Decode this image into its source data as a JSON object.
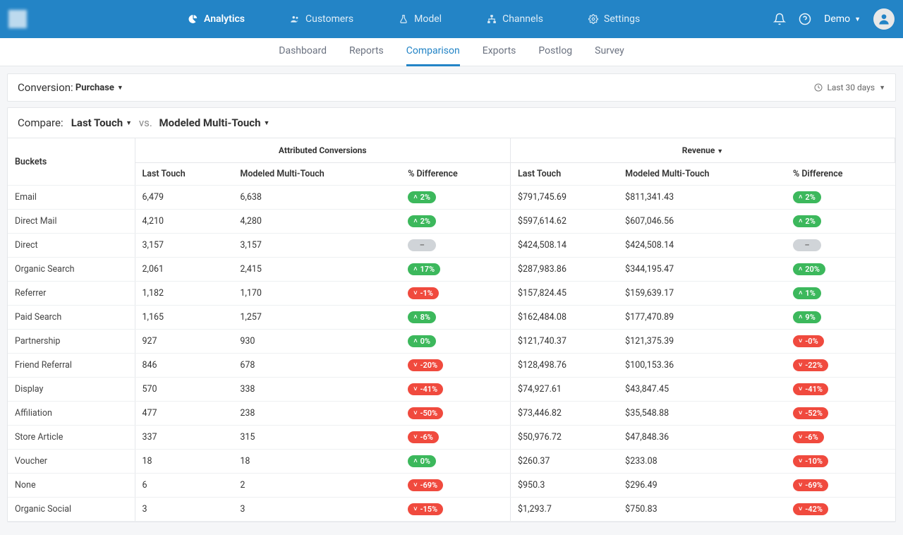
{
  "nav": {
    "items": [
      {
        "label": "Analytics",
        "active": true,
        "icon": "pie"
      },
      {
        "label": "Customers",
        "active": false,
        "icon": "users"
      },
      {
        "label": "Model",
        "active": false,
        "icon": "flask"
      },
      {
        "label": "Channels",
        "active": false,
        "icon": "sitemap"
      },
      {
        "label": "Settings",
        "active": false,
        "icon": "cogs"
      }
    ],
    "user": "Demo"
  },
  "subnav": {
    "items": [
      "Dashboard",
      "Reports",
      "Comparison",
      "Exports",
      "Postlog",
      "Survey"
    ],
    "active": "Comparison"
  },
  "filters": {
    "conversion_label": "Conversion:",
    "conversion_value": "Purchase",
    "date_range": "Last 30 days",
    "compare_label": "Compare:",
    "model_a": "Last Touch",
    "vs": "vs.",
    "model_b": "Modeled Multi-Touch"
  },
  "table": {
    "buckets_header": "Buckets",
    "group1_header": "Attributed Conversions",
    "group2_header": "Revenue",
    "sub_headers": [
      "Last Touch",
      "Modeled Multi-Touch",
      "% Difference",
      "Last Touch",
      "Modeled Multi-Touch",
      "% Difference"
    ],
    "rows": [
      {
        "bucket": "Email",
        "lt": "6,479",
        "mmt": "6,638",
        "diff1": {
          "val": "2%",
          "dir": "up"
        },
        "rlt": "$791,745.69",
        "rmmt": "$811,341.43",
        "diff2": {
          "val": "2%",
          "dir": "up"
        }
      },
      {
        "bucket": "Direct Mail",
        "lt": "4,210",
        "mmt": "4,280",
        "diff1": {
          "val": "2%",
          "dir": "up"
        },
        "rlt": "$597,614.62",
        "rmmt": "$607,046.56",
        "diff2": {
          "val": "2%",
          "dir": "up"
        }
      },
      {
        "bucket": "Direct",
        "lt": "3,157",
        "mmt": "3,157",
        "diff1": {
          "val": "–",
          "dir": "neutral"
        },
        "rlt": "$424,508.14",
        "rmmt": "$424,508.14",
        "diff2": {
          "val": "–",
          "dir": "neutral"
        }
      },
      {
        "bucket": "Organic Search",
        "lt": "2,061",
        "mmt": "2,415",
        "diff1": {
          "val": "17%",
          "dir": "up"
        },
        "rlt": "$287,983.86",
        "rmmt": "$344,195.47",
        "diff2": {
          "val": "20%",
          "dir": "up"
        }
      },
      {
        "bucket": "Referrer",
        "lt": "1,182",
        "mmt": "1,170",
        "diff1": {
          "val": "-1%",
          "dir": "down"
        },
        "rlt": "$157,824.45",
        "rmmt": "$159,639.17",
        "diff2": {
          "val": "1%",
          "dir": "up"
        }
      },
      {
        "bucket": "Paid Search",
        "lt": "1,165",
        "mmt": "1,257",
        "diff1": {
          "val": "8%",
          "dir": "up"
        },
        "rlt": "$162,484.08",
        "rmmt": "$177,470.89",
        "diff2": {
          "val": "9%",
          "dir": "up"
        }
      },
      {
        "bucket": "Partnership",
        "lt": "927",
        "mmt": "930",
        "diff1": {
          "val": "0%",
          "dir": "up"
        },
        "rlt": "$121,740.37",
        "rmmt": "$121,375.39",
        "diff2": {
          "val": "-0%",
          "dir": "down"
        }
      },
      {
        "bucket": "Friend Referral",
        "lt": "846",
        "mmt": "678",
        "diff1": {
          "val": "-20%",
          "dir": "down"
        },
        "rlt": "$128,498.76",
        "rmmt": "$100,153.36",
        "diff2": {
          "val": "-22%",
          "dir": "down"
        }
      },
      {
        "bucket": "Display",
        "lt": "570",
        "mmt": "338",
        "diff1": {
          "val": "-41%",
          "dir": "down"
        },
        "rlt": "$74,927.61",
        "rmmt": "$43,847.45",
        "diff2": {
          "val": "-41%",
          "dir": "down"
        }
      },
      {
        "bucket": "Affiliation",
        "lt": "477",
        "mmt": "238",
        "diff1": {
          "val": "-50%",
          "dir": "down"
        },
        "rlt": "$73,446.82",
        "rmmt": "$35,548.88",
        "diff2": {
          "val": "-52%",
          "dir": "down"
        }
      },
      {
        "bucket": "Store Article",
        "lt": "337",
        "mmt": "315",
        "diff1": {
          "val": "-6%",
          "dir": "down"
        },
        "rlt": "$50,976.72",
        "rmmt": "$47,848.36",
        "diff2": {
          "val": "-6%",
          "dir": "down"
        }
      },
      {
        "bucket": "Voucher",
        "lt": "18",
        "mmt": "18",
        "diff1": {
          "val": "0%",
          "dir": "up"
        },
        "rlt": "$260.37",
        "rmmt": "$233.08",
        "diff2": {
          "val": "-10%",
          "dir": "down"
        }
      },
      {
        "bucket": "None",
        "lt": "6",
        "mmt": "2",
        "diff1": {
          "val": "-69%",
          "dir": "down"
        },
        "rlt": "$950.3",
        "rmmt": "$296.49",
        "diff2": {
          "val": "-69%",
          "dir": "down"
        }
      },
      {
        "bucket": "Organic Social",
        "lt": "3",
        "mmt": "3",
        "diff1": {
          "val": "-15%",
          "dir": "down"
        },
        "rlt": "$1,293.7",
        "rmmt": "$750.83",
        "diff2": {
          "val": "-42%",
          "dir": "down"
        }
      }
    ]
  },
  "colors": {
    "brand": "#2384c6",
    "up": "#3cb85c",
    "down": "#f04a3e",
    "neutral": "#d0d4d8"
  }
}
